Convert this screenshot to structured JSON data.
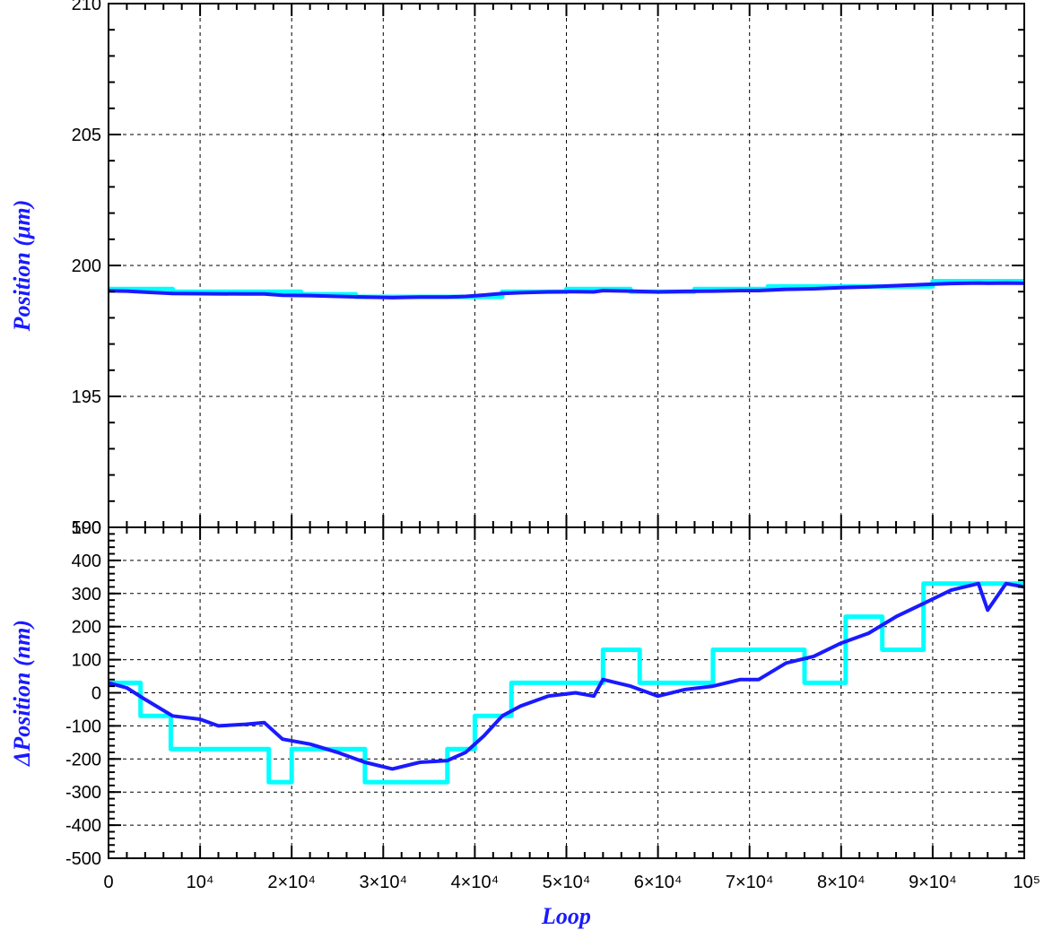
{
  "chart_data": [
    {
      "type": "line",
      "panel": "top",
      "xlabel": "Loop",
      "ylabel": "Position (μm)",
      "xlim": [
        0,
        100000
      ],
      "ylim": [
        190,
        210
      ],
      "yticks": [
        190,
        195,
        200,
        205,
        210
      ],
      "ytick_labels": [
        "190",
        "195",
        "200",
        "205",
        "210"
      ],
      "grid": true,
      "series": [
        {
          "color": "#00ffff",
          "x": [
            0,
            7000,
            7000,
            21000,
            21000,
            27000,
            27000,
            43000,
            43000,
            50000,
            50000,
            57000,
            57000,
            64000,
            64000,
            72000,
            72000,
            90000,
            90000,
            100000
          ],
          "y": [
            199.1,
            199.1,
            199.0,
            199.0,
            198.9,
            198.9,
            198.8,
            198.8,
            199.0,
            199.0,
            199.1,
            199.1,
            199.0,
            199.0,
            199.1,
            199.1,
            199.2,
            199.2,
            199.4,
            199.4
          ]
        },
        {
          "color": "#1a1aff",
          "x": [
            0,
            2000,
            4000,
            7000,
            10000,
            15000,
            17000,
            19000,
            22000,
            25000,
            28000,
            31000,
            34000,
            37000,
            39000,
            41000,
            43000,
            45000,
            48000,
            51000,
            53000,
            54000,
            57000,
            60000,
            63000,
            66000,
            69000,
            71000,
            74000,
            77000,
            80000,
            83000,
            86000,
            89000,
            92000,
            95000,
            96000,
            98000,
            100000
          ],
          "y": [
            199.03,
            199.02,
            198.98,
            198.93,
            198.92,
            198.91,
            198.91,
            198.86,
            198.85,
            198.82,
            198.79,
            198.77,
            198.79,
            198.79,
            198.82,
            198.87,
            198.93,
            198.96,
            198.99,
            199.0,
            198.99,
            199.04,
            199.02,
            198.99,
            199.01,
            199.02,
            199.04,
            199.04,
            199.09,
            199.11,
            199.15,
            199.18,
            199.23,
            199.27,
            199.31,
            199.33,
            199.32,
            199.33,
            199.32
          ]
        }
      ]
    },
    {
      "type": "line",
      "panel": "bottom",
      "xlabel": "Loop",
      "ylabel": "ΔPosition (nm)",
      "xlim": [
        0,
        100000
      ],
      "ylim": [
        -500,
        500
      ],
      "yticks": [
        -500,
        -400,
        -300,
        -200,
        -100,
        0,
        100,
        200,
        300,
        400,
        500
      ],
      "ytick_labels": [
        "-500",
        "-400",
        "-300",
        "-200",
        "-100",
        "0",
        "100",
        "200",
        "300",
        "400",
        "500"
      ],
      "xtick_labels": [
        "0",
        "10⁴",
        "2×10⁴",
        "3×10⁴",
        "4×10⁴",
        "5×10⁴",
        "6×10⁴",
        "7×10⁴",
        "8×10⁴",
        "9×10⁴",
        "10⁵"
      ],
      "grid": true,
      "series": [
        {
          "color": "#00ffff",
          "x": [
            0,
            3500,
            3500,
            6800,
            6800,
            15000,
            15000,
            17500,
            17500,
            20000,
            20000,
            28000,
            28000,
            37000,
            37000,
            40000,
            40000,
            44000,
            44000,
            52000,
            52000,
            54000,
            54000,
            58000,
            58000,
            66000,
            66000,
            76000,
            76000,
            80500,
            80500,
            84500,
            84500,
            89000,
            89000,
            93000,
            93000,
            100000
          ],
          "y": [
            30,
            30,
            -70,
            -70,
            -170,
            -170,
            -170,
            -170,
            -270,
            -270,
            -170,
            -170,
            -270,
            -270,
            -170,
            -170,
            -70,
            -70,
            30,
            30,
            30,
            30,
            130,
            130,
            30,
            30,
            130,
            130,
            30,
            30,
            230,
            230,
            130,
            130,
            330,
            330,
            330,
            330
          ]
        },
        {
          "color": "#1a1aff",
          "x": [
            0,
            2000,
            4000,
            7000,
            10000,
            12000,
            15000,
            17000,
            19000,
            22000,
            25000,
            28000,
            31000,
            34000,
            37000,
            39000,
            41000,
            43000,
            45000,
            48000,
            51000,
            53000,
            54000,
            57000,
            60000,
            63000,
            66000,
            69000,
            71000,
            74000,
            77000,
            80000,
            83000,
            86000,
            89000,
            92000,
            95000,
            96000,
            98000,
            100000
          ],
          "y": [
            30,
            15,
            -20,
            -70,
            -80,
            -100,
            -95,
            -90,
            -140,
            -155,
            -180,
            -210,
            -230,
            -210,
            -205,
            -180,
            -130,
            -70,
            -40,
            -10,
            0,
            -10,
            40,
            20,
            -10,
            10,
            20,
            40,
            40,
            90,
            110,
            150,
            180,
            230,
            270,
            310,
            330,
            250,
            330,
            320
          ]
        }
      ]
    }
  ]
}
